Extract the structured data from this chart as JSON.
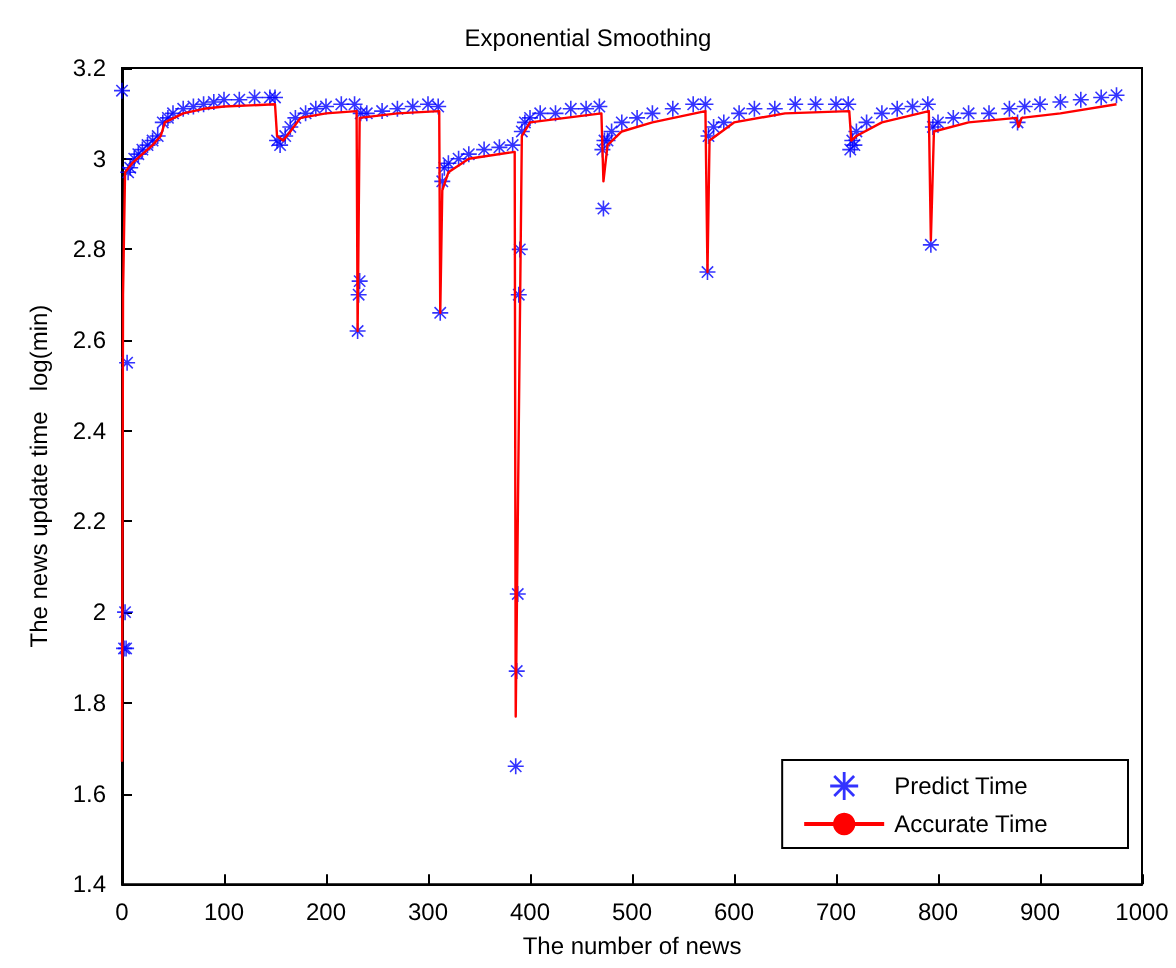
{
  "chart_data": {
    "type": "scatter",
    "title": "Exponential Smoothing",
    "xlabel": "The number of news",
    "ylabel": "The news update time   log(min)",
    "xlim": [
      0,
      1000
    ],
    "xticks": [
      0,
      100,
      200,
      300,
      400,
      500,
      600,
      700,
      800,
      900,
      1000
    ],
    "ylim": [
      1.4,
      3.2
    ],
    "yticks": [
      1.4,
      1.6,
      1.8,
      2,
      2.2,
      2.4,
      2.6,
      2.8,
      3,
      3.2
    ],
    "grid": false,
    "legend": "bottom right",
    "series": [
      {
        "name": "Predict Time",
        "marker": "star",
        "color": "#0000ff",
        "x": [
          0,
          2,
          3,
          4,
          5,
          6,
          8,
          12,
          16,
          20,
          25,
          30,
          35,
          40,
          45,
          50,
          60,
          70,
          80,
          90,
          100,
          115,
          130,
          145,
          150,
          152,
          155,
          160,
          165,
          170,
          180,
          190,
          200,
          215,
          228,
          231,
          232,
          233,
          234,
          240,
          255,
          270,
          285,
          300,
          310,
          312,
          314,
          316,
          320,
          330,
          340,
          355,
          370,
          383,
          386,
          387,
          388,
          389,
          390,
          392,
          395,
          400,
          410,
          425,
          440,
          455,
          468,
          471,
          472,
          473,
          476,
          480,
          490,
          505,
          520,
          540,
          560,
          572,
          574,
          575,
          580,
          590,
          605,
          620,
          640,
          660,
          680,
          700,
          712,
          714,
          716,
          718,
          720,
          730,
          745,
          760,
          775,
          790,
          793,
          795,
          800,
          815,
          830,
          850,
          870,
          878,
          885,
          900,
          920,
          940,
          960,
          975
        ],
        "values": [
          3.15,
          1.92,
          2.0,
          1.92,
          2.55,
          2.97,
          2.98,
          3.0,
          3.01,
          3.02,
          3.03,
          3.04,
          3.05,
          3.08,
          3.09,
          3.1,
          3.11,
          3.115,
          3.12,
          3.125,
          3.13,
          3.13,
          3.135,
          3.135,
          3.135,
          3.04,
          3.03,
          3.05,
          3.07,
          3.09,
          3.1,
          3.11,
          3.115,
          3.12,
          3.12,
          2.62,
          2.7,
          2.73,
          3.1,
          3.1,
          3.105,
          3.11,
          3.115,
          3.12,
          3.115,
          2.66,
          2.95,
          2.98,
          2.99,
          3.0,
          3.01,
          3.02,
          3.025,
          3.03,
          1.66,
          1.87,
          2.04,
          2.7,
          2.8,
          3.06,
          3.08,
          3.09,
          3.1,
          3.1,
          3.11,
          3.11,
          3.115,
          3.02,
          2.89,
          3.04,
          3.04,
          3.06,
          3.08,
          3.09,
          3.1,
          3.11,
          3.12,
          3.12,
          2.75,
          3.05,
          3.07,
          3.08,
          3.1,
          3.11,
          3.11,
          3.12,
          3.12,
          3.12,
          3.12,
          3.02,
          3.04,
          3.03,
          3.06,
          3.08,
          3.1,
          3.11,
          3.115,
          3.12,
          2.81,
          3.07,
          3.08,
          3.09,
          3.1,
          3.1,
          3.11,
          3.08,
          3.115,
          3.12,
          3.125,
          3.13,
          3.135,
          3.14
        ]
      },
      {
        "name": "Accurate Time",
        "type": "line",
        "marker": "none",
        "line_style": "solid",
        "color": "#ff0000",
        "x": [
          0,
          1,
          3,
          10,
          20,
          30,
          38,
          42,
          60,
          80,
          100,
          150,
          152,
          158,
          165,
          175,
          200,
          230,
          231,
          233,
          270,
          311,
          312,
          314,
          320,
          340,
          385,
          386,
          392,
          400,
          470,
          472,
          476,
          490,
          520,
          572,
          574,
          576,
          600,
          650,
          713,
          715,
          720,
          745,
          791,
          793,
          796,
          830,
          877,
          879,
          882,
          920,
          975
        ],
        "values": [
          1.67,
          2.7,
          2.97,
          2.99,
          3.01,
          3.03,
          3.05,
          3.08,
          3.1,
          3.11,
          3.115,
          3.12,
          3.05,
          3.04,
          3.06,
          3.09,
          3.1,
          3.105,
          2.62,
          3.09,
          3.1,
          3.105,
          2.66,
          2.93,
          2.97,
          3.0,
          3.015,
          1.77,
          3.05,
          3.08,
          3.1,
          2.95,
          3.03,
          3.06,
          3.08,
          3.105,
          2.75,
          3.04,
          3.08,
          3.1,
          3.105,
          3.04,
          3.05,
          3.08,
          3.105,
          2.82,
          3.06,
          3.08,
          3.09,
          3.07,
          3.09,
          3.1,
          3.12
        ]
      }
    ]
  }
}
